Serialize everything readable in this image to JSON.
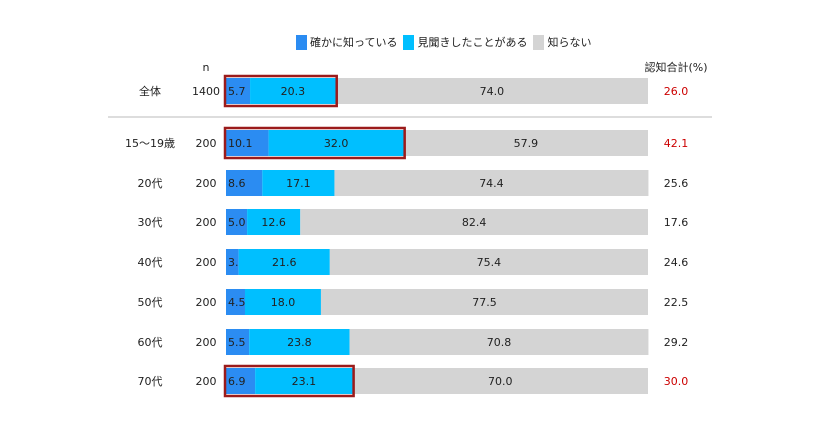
{
  "chart_data": {
    "type": "bar",
    "orientation": "horizontal",
    "stacked": true,
    "xlim": [
      0,
      100
    ],
    "n_header": "n",
    "total_header": "認知合計(%)",
    "series": [
      {
        "name": "確かに知っている",
        "color": "#2b8cf2"
      },
      {
        "name": "見聞きしたことがある",
        "color": "#00bfff"
      },
      {
        "name": "知らない",
        "color": "#d4d4d4"
      }
    ],
    "rows": [
      {
        "category": "全体",
        "n": "1400",
        "values": [
          5.7,
          20.3,
          74.0
        ],
        "labels": [
          "5.7",
          "20.3",
          "74.0"
        ],
        "total": "26.0",
        "highlight": true
      },
      {
        "category": "15～19歳",
        "n": "200",
        "values": [
          10.1,
          32.0,
          57.9
        ],
        "labels": [
          "10.1",
          "32.0",
          "57.9"
        ],
        "total": "42.1",
        "highlight": true
      },
      {
        "category": "20代",
        "n": "200",
        "values": [
          8.6,
          17.1,
          74.4
        ],
        "labels": [
          "8.6",
          "17.1",
          "74.4"
        ],
        "total": "25.6",
        "highlight": false
      },
      {
        "category": "30代",
        "n": "200",
        "values": [
          5.0,
          12.6,
          82.4
        ],
        "labels": [
          "5.0",
          "12.6",
          "82.4"
        ],
        "total": "17.6",
        "highlight": false
      },
      {
        "category": "40代",
        "n": "200",
        "values": [
          3.0,
          21.6,
          75.4
        ],
        "labels": [
          "3.0",
          "21.6",
          "75.4"
        ],
        "total": "24.6",
        "highlight": false
      },
      {
        "category": "50代",
        "n": "200",
        "values": [
          4.5,
          18.0,
          77.5
        ],
        "labels": [
          "4.5",
          "18.0",
          "77.5"
        ],
        "total": "22.5",
        "highlight": false
      },
      {
        "category": "60代",
        "n": "200",
        "values": [
          5.5,
          23.8,
          70.8
        ],
        "labels": [
          "5.5",
          "23.8",
          "70.8"
        ],
        "total": "29.2",
        "highlight": false
      },
      {
        "category": "70代",
        "n": "200",
        "values": [
          6.9,
          23.1,
          70.0
        ],
        "labels": [
          "6.9",
          "23.1",
          "70.0"
        ],
        "total": "30.0",
        "highlight": true
      }
    ],
    "colors": {
      "highlight_total": "#cc0000",
      "highlight_box": "#9b1b1b",
      "separator": "#bbbbbb"
    }
  }
}
